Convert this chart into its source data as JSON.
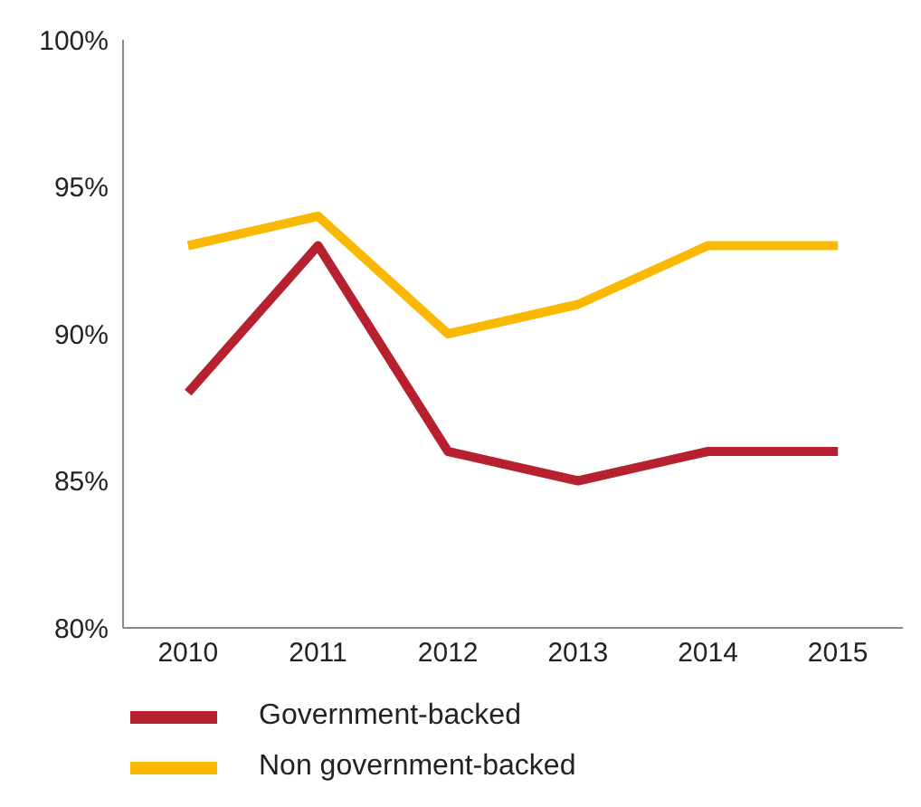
{
  "chart_data": {
    "type": "line",
    "categories": [
      "2010",
      "2011",
      "2012",
      "2013",
      "2014",
      "2015"
    ],
    "series": [
      {
        "name": "Government-backed",
        "color": "#b7202e",
        "values": [
          88,
          93,
          86,
          85,
          86,
          86
        ]
      },
      {
        "name": "Non government-backed",
        "color": "#fbb800",
        "values": [
          93,
          94,
          90,
          91,
          93,
          93
        ]
      }
    ],
    "ylim": [
      80,
      100
    ],
    "yticks": [
      {
        "value": 80,
        "label": "80%"
      },
      {
        "value": 85,
        "label": "85%"
      },
      {
        "value": 90,
        "label": "90%"
      },
      {
        "value": 95,
        "label": "95%"
      },
      {
        "value": 100,
        "label": "100%"
      }
    ],
    "grid": false,
    "legend": "bottom left",
    "marker": "none",
    "line_style": "solid"
  }
}
